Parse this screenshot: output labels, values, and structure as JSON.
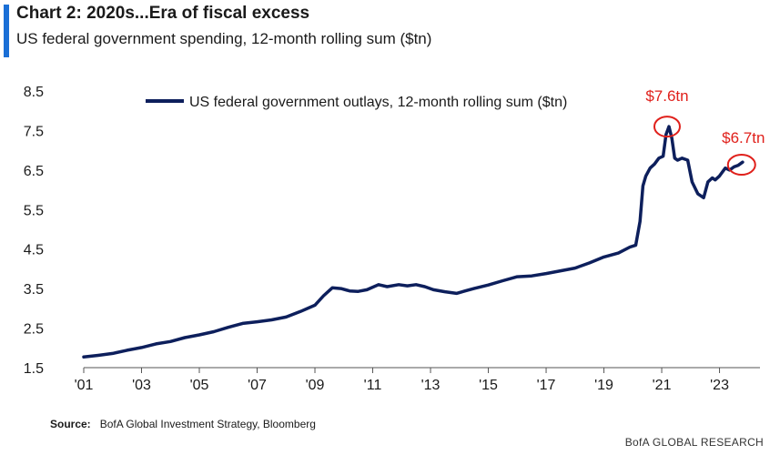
{
  "header": {
    "title": "Chart 2: 2020s...Era of fiscal excess",
    "subtitle": "US federal government spending, 12-month rolling sum ($tn)"
  },
  "colors": {
    "accent": "#1a6fd6",
    "series": "#0d1f5c",
    "annotation": "#e0201b"
  },
  "chart_data": {
    "type": "line",
    "title": "Chart 2: 2020s...Era of fiscal excess",
    "subtitle": "US federal government spending, 12-month rolling sum ($tn)",
    "xlabel": "",
    "ylabel": "",
    "ylim": [
      1.5,
      8.5
    ],
    "xlim": [
      2001.0,
      2024.4
    ],
    "y_ticks": [
      "8.5",
      "7.5",
      "6.5",
      "5.5",
      "4.5",
      "3.5",
      "2.5",
      "1.5"
    ],
    "x_ticks": [
      "'01",
      "'03",
      "'05",
      "'07",
      "'09",
      "'11",
      "'13",
      "'15",
      "'17",
      "'19",
      "'21",
      "'23"
    ],
    "grid": false,
    "legend_position": "top-center",
    "series": [
      {
        "name": "US federal government outlays, 12-month rolling sum ($tn)",
        "x": [
          2001.0,
          2001.5,
          2002.0,
          2002.5,
          2003.0,
          2003.5,
          2004.0,
          2004.5,
          2005.0,
          2005.5,
          2006.0,
          2006.5,
          2007.0,
          2007.5,
          2008.0,
          2008.5,
          2009.0,
          2009.3,
          2009.6,
          2009.9,
          2010.2,
          2010.5,
          2010.8,
          2011.2,
          2011.5,
          2011.9,
          2012.2,
          2012.5,
          2012.8,
          2013.1,
          2013.5,
          2013.9,
          2014.2,
          2014.5,
          2015.0,
          2015.5,
          2016.0,
          2016.5,
          2017.0,
          2017.5,
          2018.0,
          2018.5,
          2019.0,
          2019.5,
          2019.9,
          2020.1,
          2020.25,
          2020.35,
          2020.45,
          2020.6,
          2020.75,
          2020.9,
          2021.05,
          2021.15,
          2021.25,
          2021.35,
          2021.45,
          2021.55,
          2021.7,
          2021.9,
          2022.05,
          2022.25,
          2022.45,
          2022.6,
          2022.75,
          2022.85,
          2023.0,
          2023.2,
          2023.35,
          2023.5,
          2023.65,
          2023.8
        ],
        "y": [
          1.77,
          1.81,
          1.86,
          1.94,
          2.01,
          2.1,
          2.16,
          2.26,
          2.33,
          2.41,
          2.52,
          2.62,
          2.66,
          2.71,
          2.78,
          2.92,
          3.08,
          3.32,
          3.52,
          3.5,
          3.44,
          3.43,
          3.47,
          3.6,
          3.55,
          3.6,
          3.57,
          3.6,
          3.55,
          3.47,
          3.42,
          3.38,
          3.44,
          3.5,
          3.59,
          3.7,
          3.8,
          3.82,
          3.88,
          3.95,
          4.02,
          4.15,
          4.3,
          4.4,
          4.55,
          4.6,
          5.2,
          6.1,
          6.35,
          6.55,
          6.65,
          6.8,
          6.85,
          7.4,
          7.6,
          7.3,
          6.8,
          6.75,
          6.8,
          6.75,
          6.2,
          5.9,
          5.8,
          6.2,
          6.3,
          6.25,
          6.35,
          6.55,
          6.5,
          6.58,
          6.62,
          6.7
        ]
      }
    ],
    "annotations": [
      {
        "label": "$7.6tn",
        "x": 2021.25,
        "y": 7.6
      },
      {
        "label": "$6.7tn",
        "x": 2023.7,
        "y": 6.68
      }
    ]
  },
  "footer": {
    "source_label": "Source:",
    "source_text": "BofA Global Investment Strategy, Bloomberg",
    "brand": "BofA GLOBAL RESEARCH"
  }
}
